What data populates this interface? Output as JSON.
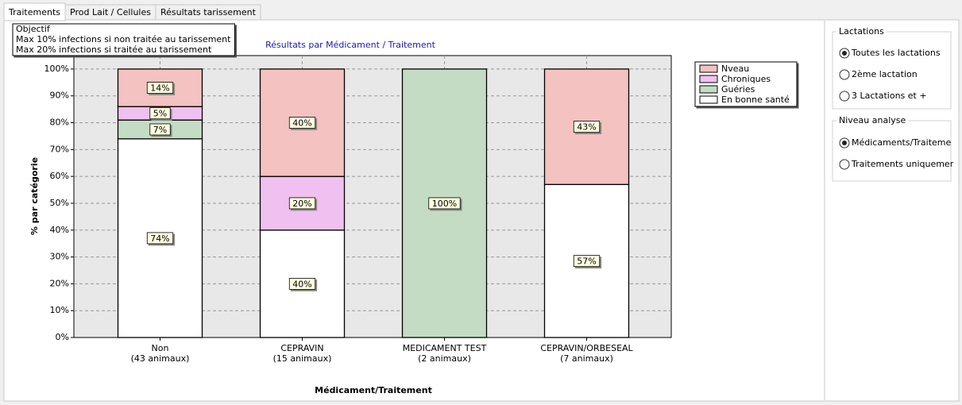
{
  "tabs": [
    "Traitements",
    "Prod Lait / Cellules",
    "Résultats tarissement"
  ],
  "chart_data": {
    "type": "stacked-bar",
    "title": "Résultats par Médicament / Traitement",
    "note": [
      "Objectif",
      "Max 10% infections si non traitée au tarissement",
      "Max 20% infections si traitée au tarissement"
    ],
    "categories": [
      "Non",
      "CEPRAVIN",
      "MEDICAMENT TEST",
      "CEPRAVIN/ORBESEAL"
    ],
    "category_notes": [
      "(43 animaux)",
      "(15 animaux)",
      "(2 animaux)",
      "(7 animaux)"
    ],
    "x_label": "Médicament/Traitement",
    "y_label": "% par catégorie",
    "ylim": [
      0,
      105
    ],
    "yticks": [
      {
        "value": 0,
        "label": "0%"
      },
      {
        "value": 10,
        "label": "10%"
      },
      {
        "value": 20,
        "label": "20%"
      },
      {
        "value": 30,
        "label": "30%"
      },
      {
        "value": 40,
        "label": "40%"
      },
      {
        "value": 50,
        "label": "50%"
      },
      {
        "value": 60,
        "label": "60%"
      },
      {
        "value": 70,
        "label": "70%"
      },
      {
        "value": 80,
        "label": "80%"
      },
      {
        "value": 90,
        "label": "90%"
      },
      {
        "value": 100,
        "label": "100%"
      }
    ],
    "grid": true,
    "legend": "top-right",
    "series": [
      {
        "name": "Nveau",
        "color": "#f4c2c0",
        "values": [
          14,
          40,
          0,
          43
        ],
        "value_labels": [
          "14%",
          "40%",
          null,
          "43%"
        ]
      },
      {
        "name": "Chroniques",
        "color": "#f0c0f0",
        "values": [
          5,
          20,
          0,
          0
        ],
        "value_labels": [
          "5%",
          "20%",
          null,
          null
        ]
      },
      {
        "name": "Guéries",
        "color": "#c4dcc4",
        "values": [
          7,
          0,
          100,
          0
        ],
        "value_labels": [
          "7%",
          null,
          "100%",
          null
        ]
      },
      {
        "name": "En bonne santé",
        "color": "#ffffff",
        "values": [
          74,
          40,
          0,
          57
        ],
        "value_labels": [
          "74%",
          "40%",
          null,
          "57%"
        ]
      }
    ]
  },
  "side_panel": [
    {
      "title": "Lactations",
      "options": [
        "Toutes les lactations",
        "2ème lactation",
        "3 Lactations et +"
      ],
      "selected": 0
    },
    {
      "title": "Niveau analyse",
      "options": [
        "Médicaments/Traiteme",
        "Traitements uniquemer"
      ],
      "selected": 0
    }
  ]
}
